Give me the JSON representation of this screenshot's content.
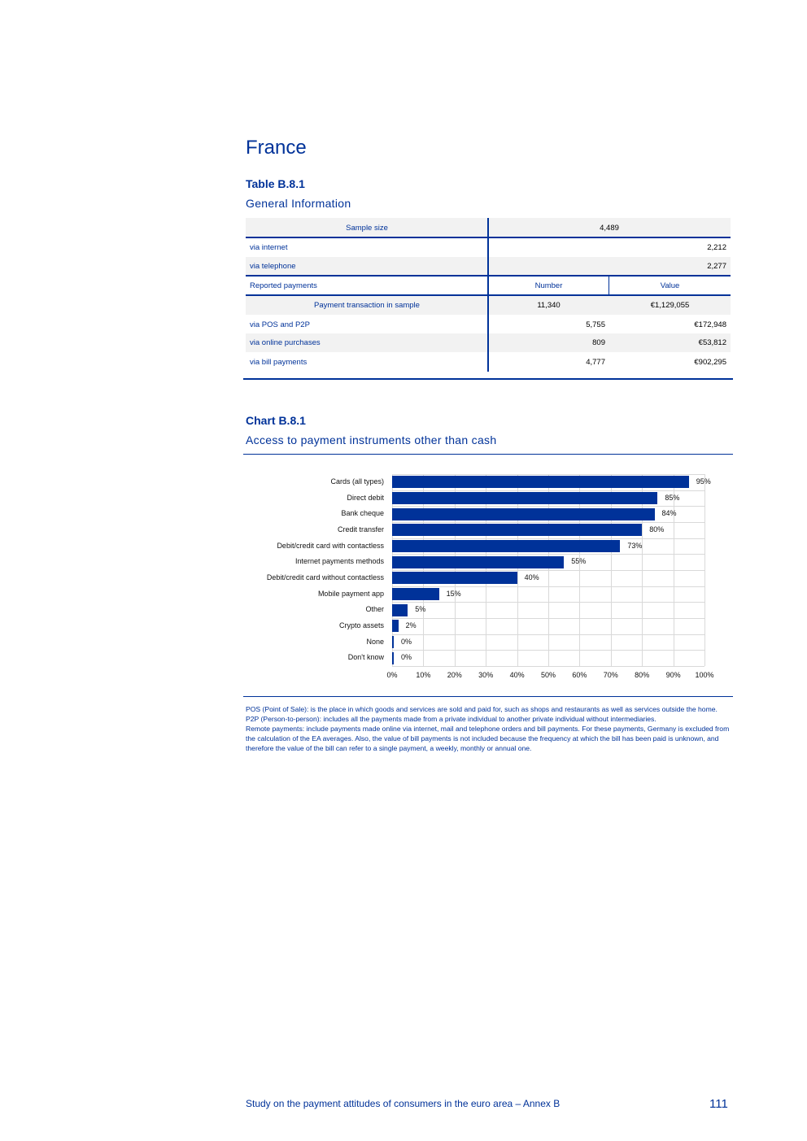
{
  "heading": "France",
  "table": {
    "title": "Table B.8.1",
    "subtitle": "General Information",
    "sample_size_label": "Sample size",
    "sample_size_value": "4,489",
    "sample_rows": [
      {
        "label": "via internet",
        "value": "2,212"
      },
      {
        "label": "via telephone",
        "value": "2,277"
      }
    ],
    "reported_label": "Reported payments",
    "number_header": "Number",
    "value_header": "Value",
    "total_label": "Payment transaction in sample",
    "total_number": "11,340",
    "total_value": "€1,129,055",
    "payment_rows": [
      {
        "label": "via POS and P2P",
        "number": "5,755",
        "value": "€172,948"
      },
      {
        "label": "via online purchases",
        "number": "809",
        "value": "€53,812"
      },
      {
        "label": "via bill payments",
        "number": "4,777",
        "value": "€902,295"
      }
    ]
  },
  "chart": {
    "title": "Chart B.8.1",
    "subtitle": "Access to payment instruments other than cash"
  },
  "chart_data": {
    "type": "bar",
    "orientation": "horizontal",
    "categories": [
      "Cards (all types)",
      "Direct debit",
      "Bank cheque",
      "Credit transfer",
      "Debit/credit card with contactless",
      "Internet payments methods",
      "Debit/credit card without contactless",
      "Mobile payment app",
      "Other",
      "Crypto assets",
      "None",
      "Don't know"
    ],
    "values": [
      95,
      85,
      84,
      80,
      73,
      55,
      40,
      15,
      5,
      2,
      0,
      0
    ],
    "data_labels": [
      "95%",
      "85%",
      "84%",
      "80%",
      "73%",
      "55%",
      "40%",
      "15%",
      "5%",
      "2%",
      "0%",
      "0%"
    ],
    "xlim": [
      0,
      100
    ],
    "x_ticks": [
      "0%",
      "10%",
      "20%",
      "30%",
      "40%",
      "50%",
      "60%",
      "70%",
      "80%",
      "90%",
      "100%"
    ],
    "grid": true,
    "color": "#003299"
  },
  "notes": [
    "POS (Point of Sale): is the place in which goods and services are sold and paid for, such as shops and restaurants as well as services outside the home.",
    "P2P (Person-to-person): includes all the payments made from a private individual to another private individual without intermediaries.",
    "Remote payments: include payments made online via internet, mail and telephone orders and bill payments. For these payments, Germany is excluded from the calculation of the EA averages. Also, the value of bill payments is not included because the frequency at which the bill has been paid is unknown, and therefore the value of the bill can refer to a single payment, a weekly, monthly or annual one."
  ],
  "footer": {
    "text": "Study on the payment attitudes of consumers in the euro area – Annex B",
    "page": "111"
  }
}
